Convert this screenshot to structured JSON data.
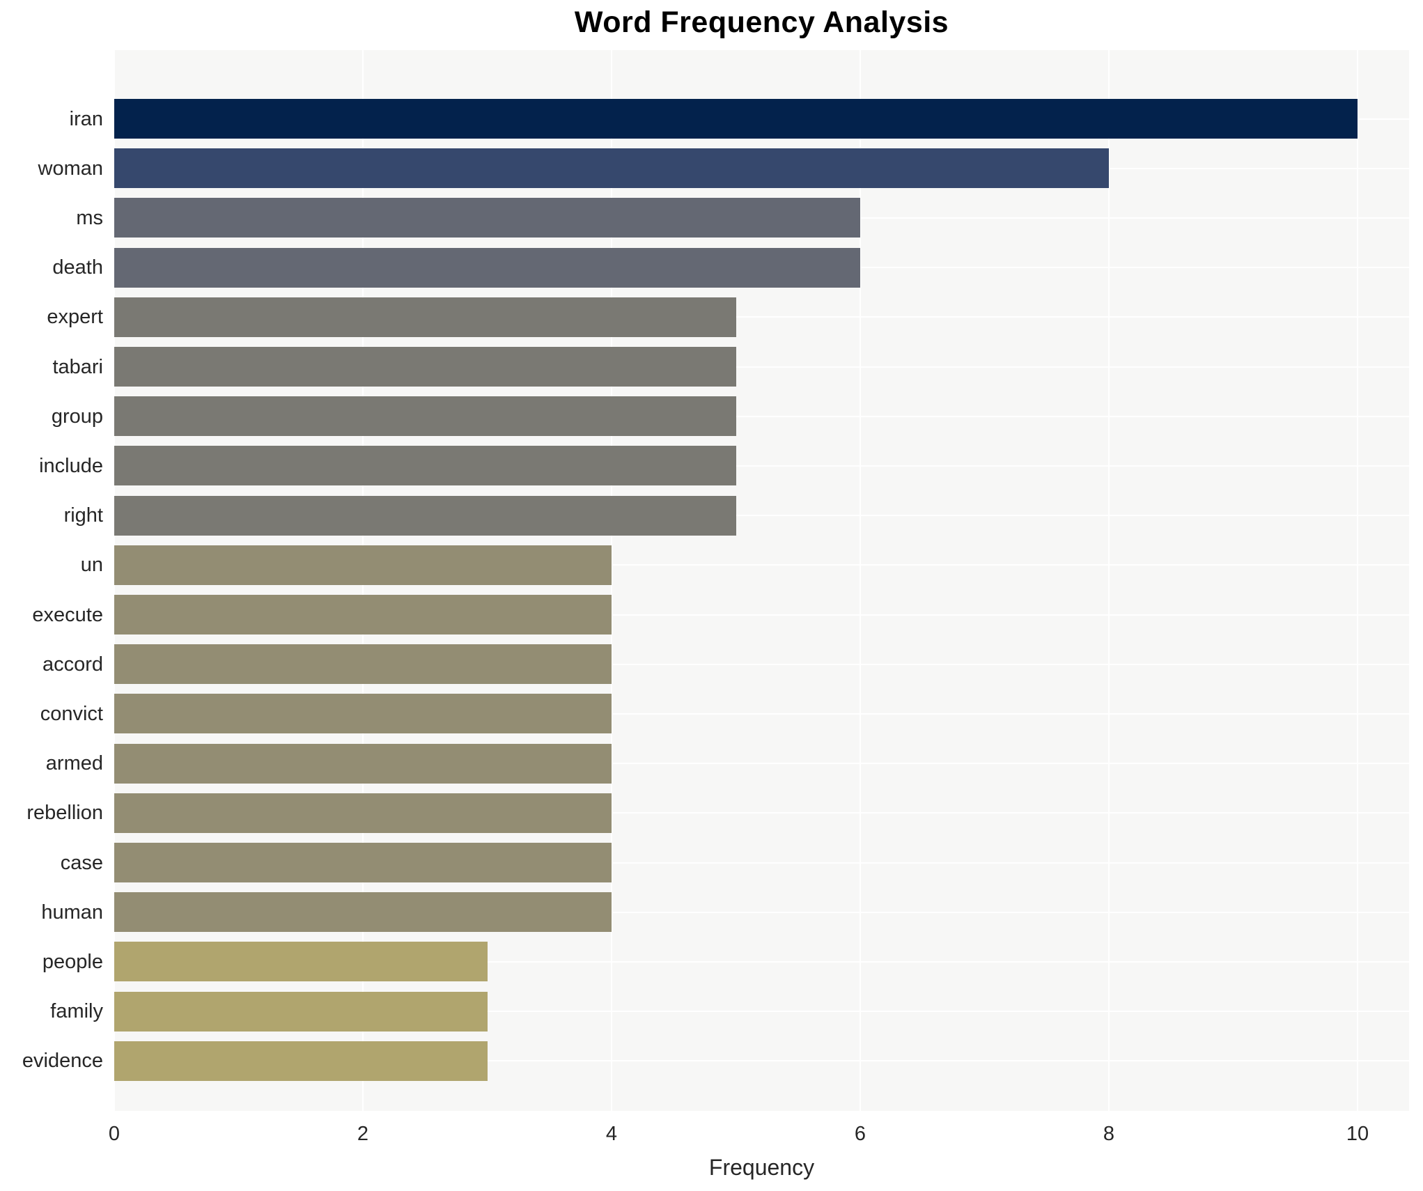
{
  "page": {
    "background_color": "#ffffff",
    "plot_background_color": "#f7f7f6",
    "gridline_color": "#ffffff",
    "text_color": "#262626",
    "title_color": "#000000"
  },
  "title": {
    "text": "Word Frequency Analysis"
  },
  "chart_data": {
    "type": "bar",
    "orientation": "horizontal",
    "title": "Word Frequency Analysis",
    "xlabel": "Frequency",
    "ylabel": "",
    "xlim": [
      0,
      10.42
    ],
    "x_tick_labels": [
      "0",
      "2",
      "4",
      "6",
      "8",
      "10"
    ],
    "x_tick_values": [
      0,
      2,
      4,
      6,
      8,
      10
    ],
    "grid": true,
    "legend_position": "none",
    "categories": [
      "iran",
      "woman",
      "ms",
      "death",
      "expert",
      "tabari",
      "group",
      "include",
      "right",
      "un",
      "execute",
      "accord",
      "convict",
      "armed",
      "rebellion",
      "case",
      "human",
      "people",
      "family",
      "evidence"
    ],
    "values": [
      10,
      8,
      6,
      6,
      5,
      5,
      5,
      5,
      5,
      4,
      4,
      4,
      4,
      4,
      4,
      4,
      4,
      3,
      3,
      3
    ],
    "bar_colors": [
      "#03224c",
      "#36486d",
      "#646873",
      "#646873",
      "#7a7973",
      "#7a7973",
      "#7a7973",
      "#7a7973",
      "#7a7973",
      "#938d73",
      "#938d73",
      "#938d73",
      "#938d73",
      "#938d73",
      "#938d73",
      "#938d73",
      "#938d73",
      "#b0a56e",
      "#b0a56e",
      "#b0a56e"
    ]
  }
}
